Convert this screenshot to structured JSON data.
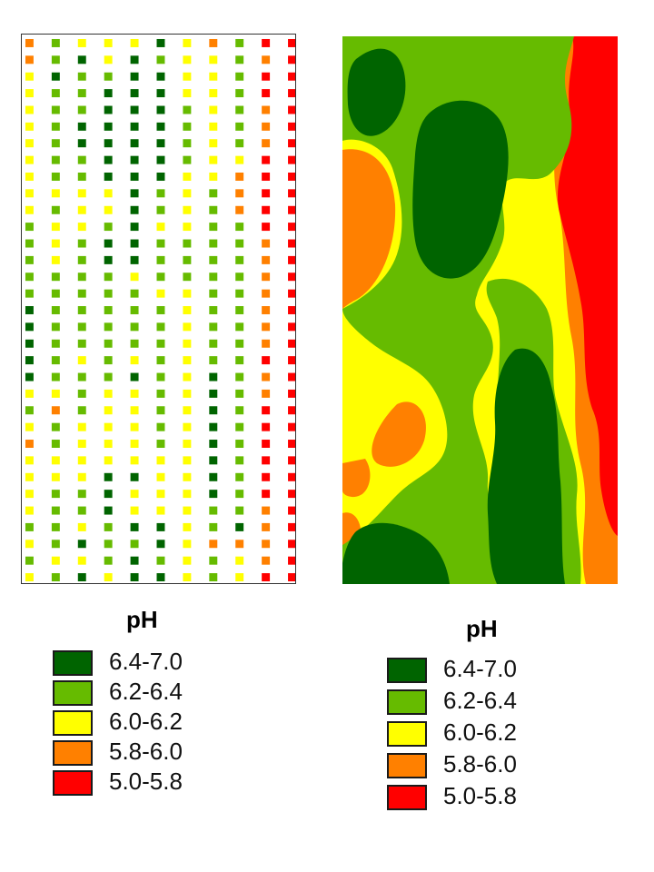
{
  "ph_classes": [
    {
      "range": "6.4-7.0",
      "color": "#006400"
    },
    {
      "range": "6.2-6.4",
      "color": "#66bb00"
    },
    {
      "range": "6.0-6.2",
      "color": "#ffff00"
    },
    {
      "range": "5.8-6.0",
      "color": "#ff8000"
    },
    {
      "range": "5.0-5.8",
      "color": "#ff0000"
    }
  ],
  "legends": [
    {
      "title": "pH",
      "items": [
        "6.4-7.0",
        "6.2-6.4",
        "6.0-6.2",
        "5.8-6.0",
        "5.0-5.8"
      ]
    },
    {
      "title": "pH",
      "items": [
        "6.4-7.0",
        "6.2-6.4",
        "6.0-6.2",
        "5.8-6.0",
        "5.0-5.8"
      ]
    }
  ],
  "sample_transects": [
    "443333333332222211111323433332323",
    "221222222323332222222342233222232",
    "312221122333222222232223333223131",
    "332111111332112222222333331112223",
    "311111111111113222231333331331211",
    "121111111223222322222222233331121",
    "333322223333222333333333333333333",
    "433333333222222222221111111122422",
    "222222234442222222222222222221433",
    "545544455555444444454455555544445",
    "555555555555555555555555555555555"
  ]
}
